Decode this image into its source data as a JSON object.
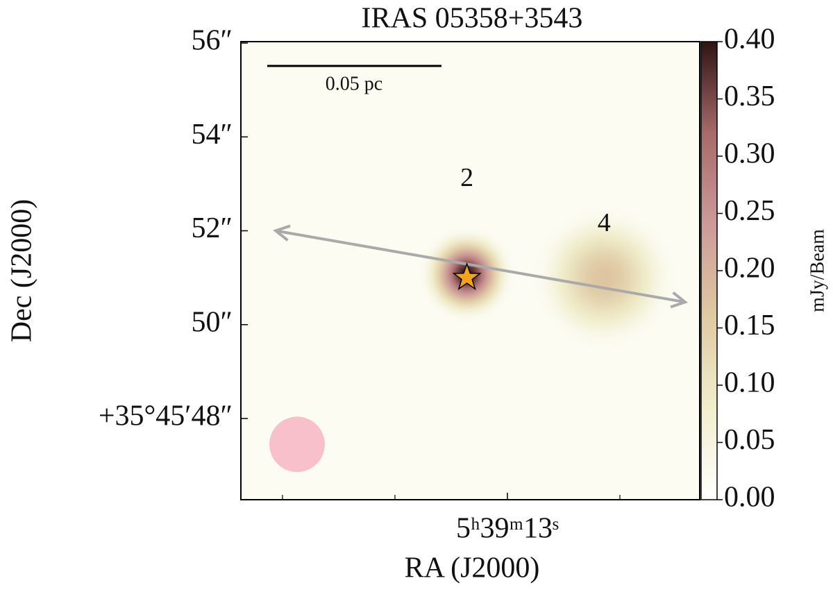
{
  "chart_data": {
    "type": "image",
    "title": "IRAS 05358+3543",
    "xlabel": "RA (J2000)",
    "ylabel": "Dec (J2000)",
    "colorbar_label": "mJy/Beam",
    "xlim": [
      13.1185,
      12.9145
    ],
    "ylim": [
      46.27,
      56.03
    ],
    "xticks": [
      {
        "value": 13.0,
        "label": "5ʰ39ᵐ13ˢ"
      }
    ],
    "xminor_ticks": [
      13.1,
      13.05,
      12.95
    ],
    "yticks": [
      {
        "value": 56,
        "label": "56″"
      },
      {
        "value": 54,
        "label": "54″"
      },
      {
        "value": 52,
        "label": "52″"
      },
      {
        "value": 50,
        "label": "50″"
      },
      {
        "value": 48,
        "label": "+35°45′48″"
      }
    ],
    "clim": [
      0,
      0.4
    ],
    "cticks": [
      {
        "value": 0,
        "label": "0.00"
      },
      0.05,
      {
        "value": 0.1,
        "label": "0.10"
      },
      0.15,
      {
        "value": 0.2,
        "label": "0.20"
      },
      0.25,
      {
        "value": 0.3,
        "label": "0.30"
      },
      0.35,
      {
        "value": 0.4,
        "label": "0.40"
      }
    ],
    "colormap": [
      "#ffffff",
      "#f1eecd",
      "#dfcaa3",
      "#cc9b98",
      "#a86a6a",
      "#2e1414"
    ],
    "sources": [
      {
        "label": "2",
        "x": 13.018,
        "y": 51.07,
        "peak": 0.4,
        "sigma": 0.42
      },
      {
        "label": "4",
        "x": 12.957,
        "y": 51.0,
        "peak": 0.17,
        "sigma": 0.75
      }
    ],
    "star": {
      "x": 13.018,
      "y": 51.0,
      "color": "#f5a31a"
    },
    "arrow": {
      "x": [
        13.103,
        12.921
      ],
      "y": [
        52.0,
        50.48
      ],
      "color": "#aaaaaa"
    },
    "beam": {
      "x": 13.0935,
      "y": 47.45,
      "radius": 0.59,
      "color": "#f7c0cb"
    },
    "scalebar_label": "0.05 pc"
  }
}
